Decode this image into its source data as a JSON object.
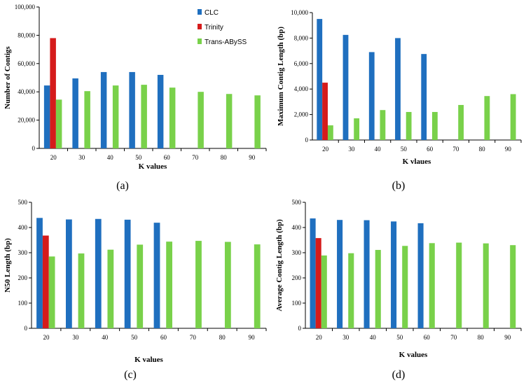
{
  "colors": {
    "CLC": "#1f6fbf",
    "Trinity": "#d51b1b",
    "Trans-ABySS": "#79d14a"
  },
  "legend_entries": [
    "CLC",
    "Trinity",
    "Trans-ABySS"
  ],
  "chart_data": [
    {
      "type": "bar",
      "panel_label": "(a)",
      "xlabel": "K values",
      "ylabel": "Number of Contigs",
      "categories": [
        "20",
        "30",
        "40",
        "50",
        "60",
        "70",
        "80",
        "90"
      ],
      "ylim": [
        0,
        100000
      ],
      "yticks": [
        "0",
        "20,000",
        "40,000",
        "60,000",
        "80,000",
        "100,000"
      ],
      "series": [
        {
          "name": "CLC",
          "values": [
            44500,
            49500,
            54000,
            54000,
            52000,
            null,
            null,
            null
          ]
        },
        {
          "name": "Trinity",
          "values": [
            78000,
            null,
            null,
            null,
            null,
            null,
            null,
            null
          ]
        },
        {
          "name": "Trans-ABySS",
          "values": [
            34500,
            40500,
            44500,
            45000,
            43000,
            40000,
            38500,
            37500
          ]
        }
      ]
    },
    {
      "type": "bar",
      "panel_label": "(b)",
      "xlabel": "K vlaues",
      "ylabel": "Maximum Contig Length (bp)",
      "categories": [
        "20",
        "30",
        "40",
        "50",
        "60",
        "70",
        "80",
        "90"
      ],
      "ylim": [
        0,
        10000
      ],
      "yticks": [
        "0",
        "2,000",
        "4,000",
        "6,000",
        "8,000",
        "10,000"
      ],
      "series": [
        {
          "name": "CLC",
          "values": [
            9500,
            8250,
            6900,
            8000,
            6750,
            null,
            null,
            null
          ]
        },
        {
          "name": "Trinity",
          "values": [
            4500,
            null,
            null,
            null,
            null,
            null,
            null,
            null
          ]
        },
        {
          "name": "Trans-ABySS",
          "values": [
            1150,
            1700,
            2350,
            2200,
            2200,
            2750,
            3450,
            3600
          ]
        }
      ]
    },
    {
      "type": "bar",
      "panel_label": "(c)",
      "xlabel": "K values",
      "ylabel": "N50 Length (bp)",
      "categories": [
        "20",
        "30",
        "40",
        "50",
        "60",
        "70",
        "80",
        "90"
      ],
      "ylim": [
        0,
        500
      ],
      "yticks": [
        "0",
        "100",
        "200",
        "300",
        "400",
        "500"
      ],
      "series": [
        {
          "name": "CLC",
          "values": [
            438,
            432,
            434,
            431,
            419,
            null,
            null,
            null
          ]
        },
        {
          "name": "Trinity",
          "values": [
            368,
            null,
            null,
            null,
            null,
            null,
            null,
            null
          ]
        },
        {
          "name": "Trans-ABySS",
          "values": [
            285,
            297,
            312,
            332,
            344,
            347,
            343,
            333
          ]
        }
      ]
    },
    {
      "type": "bar",
      "panel_label": "(d)",
      "xlabel": "K values",
      "ylabel": "Average Contig Length (bp)",
      "categories": [
        "20",
        "30",
        "40",
        "50",
        "60",
        "70",
        "80",
        "90"
      ],
      "ylim": [
        0,
        500
      ],
      "yticks": [
        "0",
        "100",
        "200",
        "300",
        "400",
        "500"
      ],
      "series": [
        {
          "name": "CLC",
          "values": [
            436,
            430,
            429,
            424,
            417,
            null,
            null,
            null
          ]
        },
        {
          "name": "Trinity",
          "values": [
            358,
            null,
            null,
            null,
            null,
            null,
            null,
            null
          ]
        },
        {
          "name": "Trans-ABySS",
          "values": [
            289,
            298,
            311,
            327,
            338,
            340,
            337,
            330
          ]
        }
      ]
    }
  ]
}
